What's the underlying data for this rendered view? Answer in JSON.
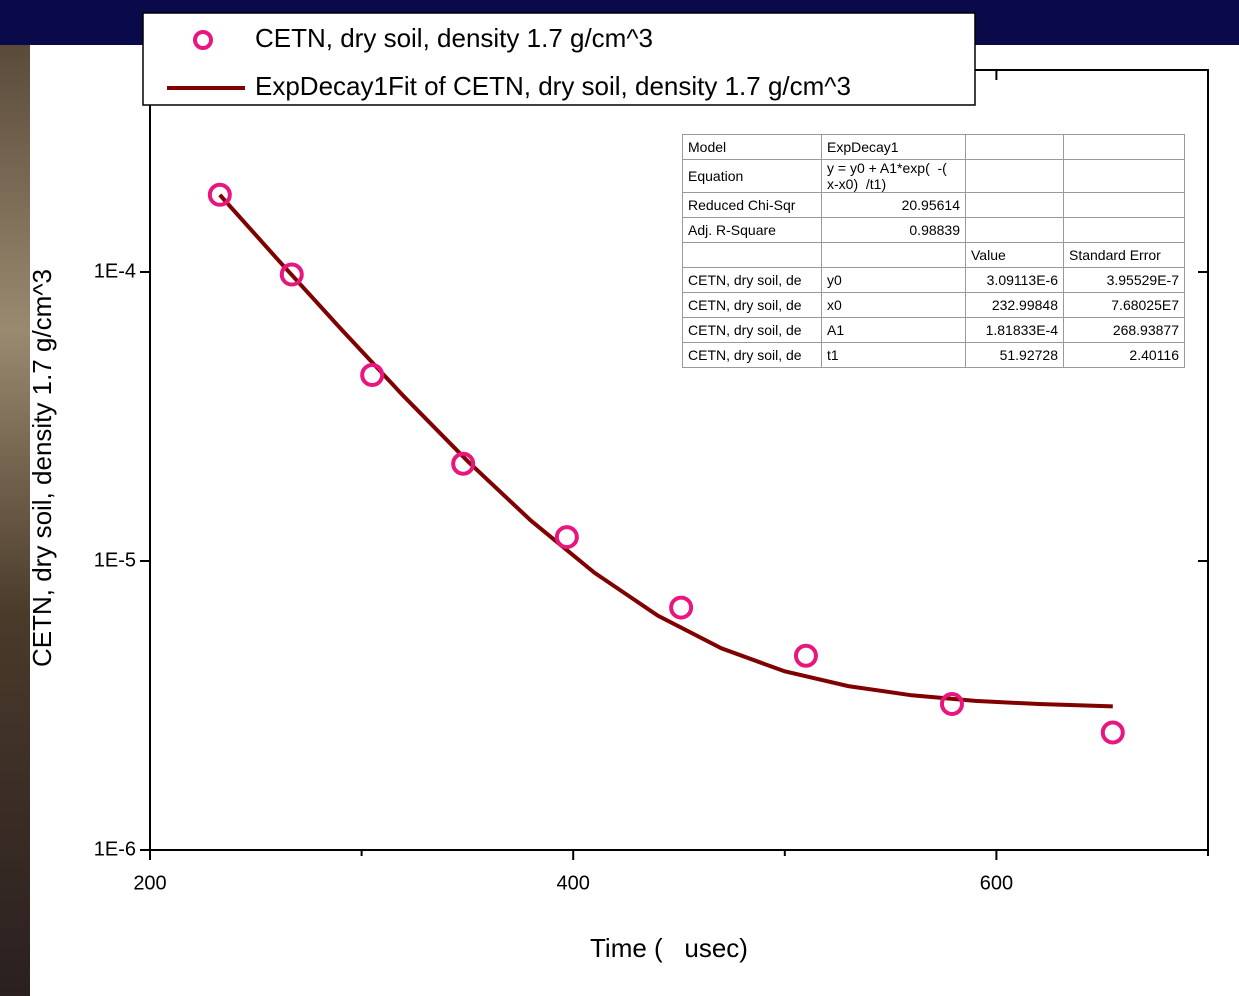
{
  "chart_data": {
    "type": "scatter",
    "x_label": "Time (   usec)",
    "y_label": "CETN, dry soil, density 1.7 g/cm^3",
    "xlim": [
      200,
      700
    ],
    "xticks": [
      200,
      400,
      600
    ],
    "xminor_ticks": [
      300,
      500,
      700
    ],
    "ylim": [
      1e-06,
      0.0005
    ],
    "log_y": true,
    "yticks": [
      {
        "value": 1e-06,
        "label": "1E-6"
      },
      {
        "value": 1e-05,
        "label": "1E-5"
      },
      {
        "value": 0.0001,
        "label": "1E-4"
      }
    ],
    "legend": "top-left",
    "series": [
      {
        "name": "CETN, dry soil, density 1.7 g/cm^3",
        "type": "scatter",
        "color": "#e8177f",
        "x": [
          233,
          267,
          305,
          348,
          397,
          451,
          510,
          579,
          655
        ],
        "values": [
          0.000185,
          9.8e-05,
          4.4e-05,
          2.17e-05,
          1.21e-05,
          6.9e-06,
          4.7e-06,
          3.2e-06,
          2.55e-06
        ]
      },
      {
        "name": "ExpDecay1Fit of CETN, dry soil, density 1.7 g/cm^3",
        "type": "line",
        "color": "#800000",
        "x": [
          233,
          260,
          290,
          320,
          350,
          380,
          410,
          440,
          470,
          500,
          530,
          560,
          590,
          620,
          655
        ],
        "values": [
          0.0001849,
          0.0001112,
          6.38e-05,
          3.71e-05,
          2.22e-05,
          1.38e-05,
          9.11e-06,
          6.47e-06,
          4.99e-06,
          4.15e-06,
          3.69e-06,
          3.43e-06,
          3.28e-06,
          3.2e-06,
          3.14e-06
        ]
      }
    ],
    "fit_table": {
      "rows": [
        [
          "Model",
          "ExpDecay1",
          null,
          null
        ],
        [
          "Equation",
          "y = y0 + A1*exp(  -(  x-x0)  /t1)",
          null,
          null
        ],
        [
          "Reduced Chi-Sqr",
          "20.95614",
          null,
          null
        ],
        [
          "Adj. R-Square",
          "0.98839",
          null,
          null
        ],
        [
          null,
          null,
          "Value",
          "Standard Error"
        ],
        [
          "CETN, dry soil, de",
          "y0",
          "3.09113E-6",
          "3.95529E-7"
        ],
        [
          "CETN, dry soil, de",
          "x0",
          "232.99848",
          "7.68025E7"
        ],
        [
          "CETN, dry soil, de",
          "A1",
          "1.81833E-4",
          "268.93877"
        ],
        [
          "CETN, dry soil, de",
          "t1",
          "51.92728",
          "2.40116"
        ]
      ]
    }
  }
}
